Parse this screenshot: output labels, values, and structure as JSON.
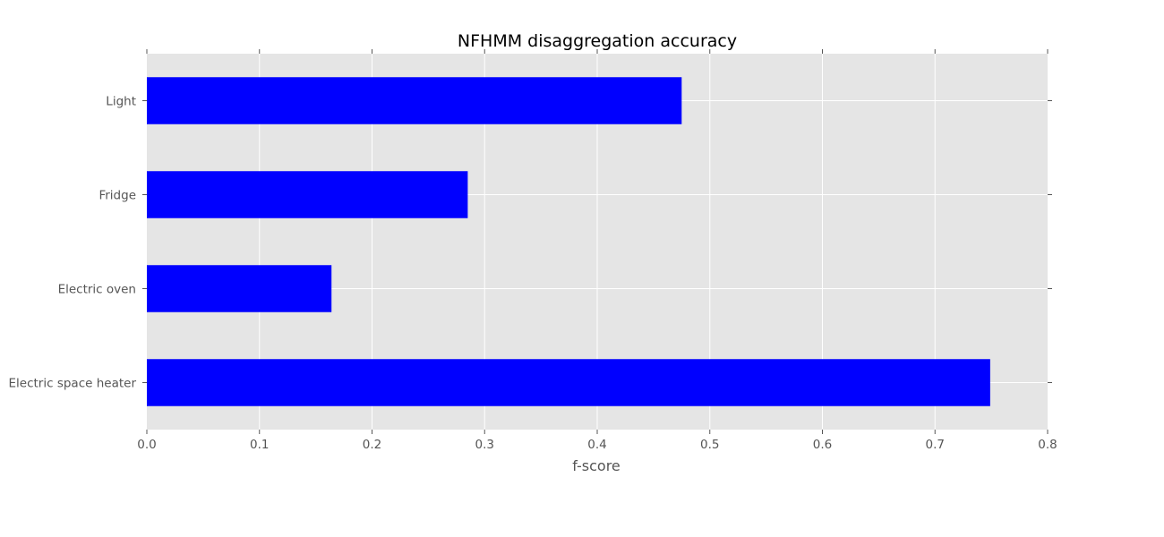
{
  "chart_data": {
    "type": "bar",
    "orientation": "horizontal",
    "title": "NFHMM disaggregation accuracy",
    "xlabel": "f-score",
    "ylabel": "",
    "categories": [
      "Light",
      "Fridge",
      "Electric oven",
      "Electric space heater"
    ],
    "values": [
      0.475,
      0.285,
      0.164,
      0.749
    ],
    "xlim": [
      0.0,
      0.8
    ],
    "xticks": [
      "0.0",
      "0.1",
      "0.2",
      "0.3",
      "0.4",
      "0.5",
      "0.6",
      "0.7",
      "0.8"
    ],
    "grid": true,
    "legend": "none",
    "colors": {
      "bar": "#0000ff",
      "plot_background": "#e5e5e5",
      "grid": "#ffffff",
      "tick_text": "#555555",
      "title_text": "#000000"
    }
  }
}
